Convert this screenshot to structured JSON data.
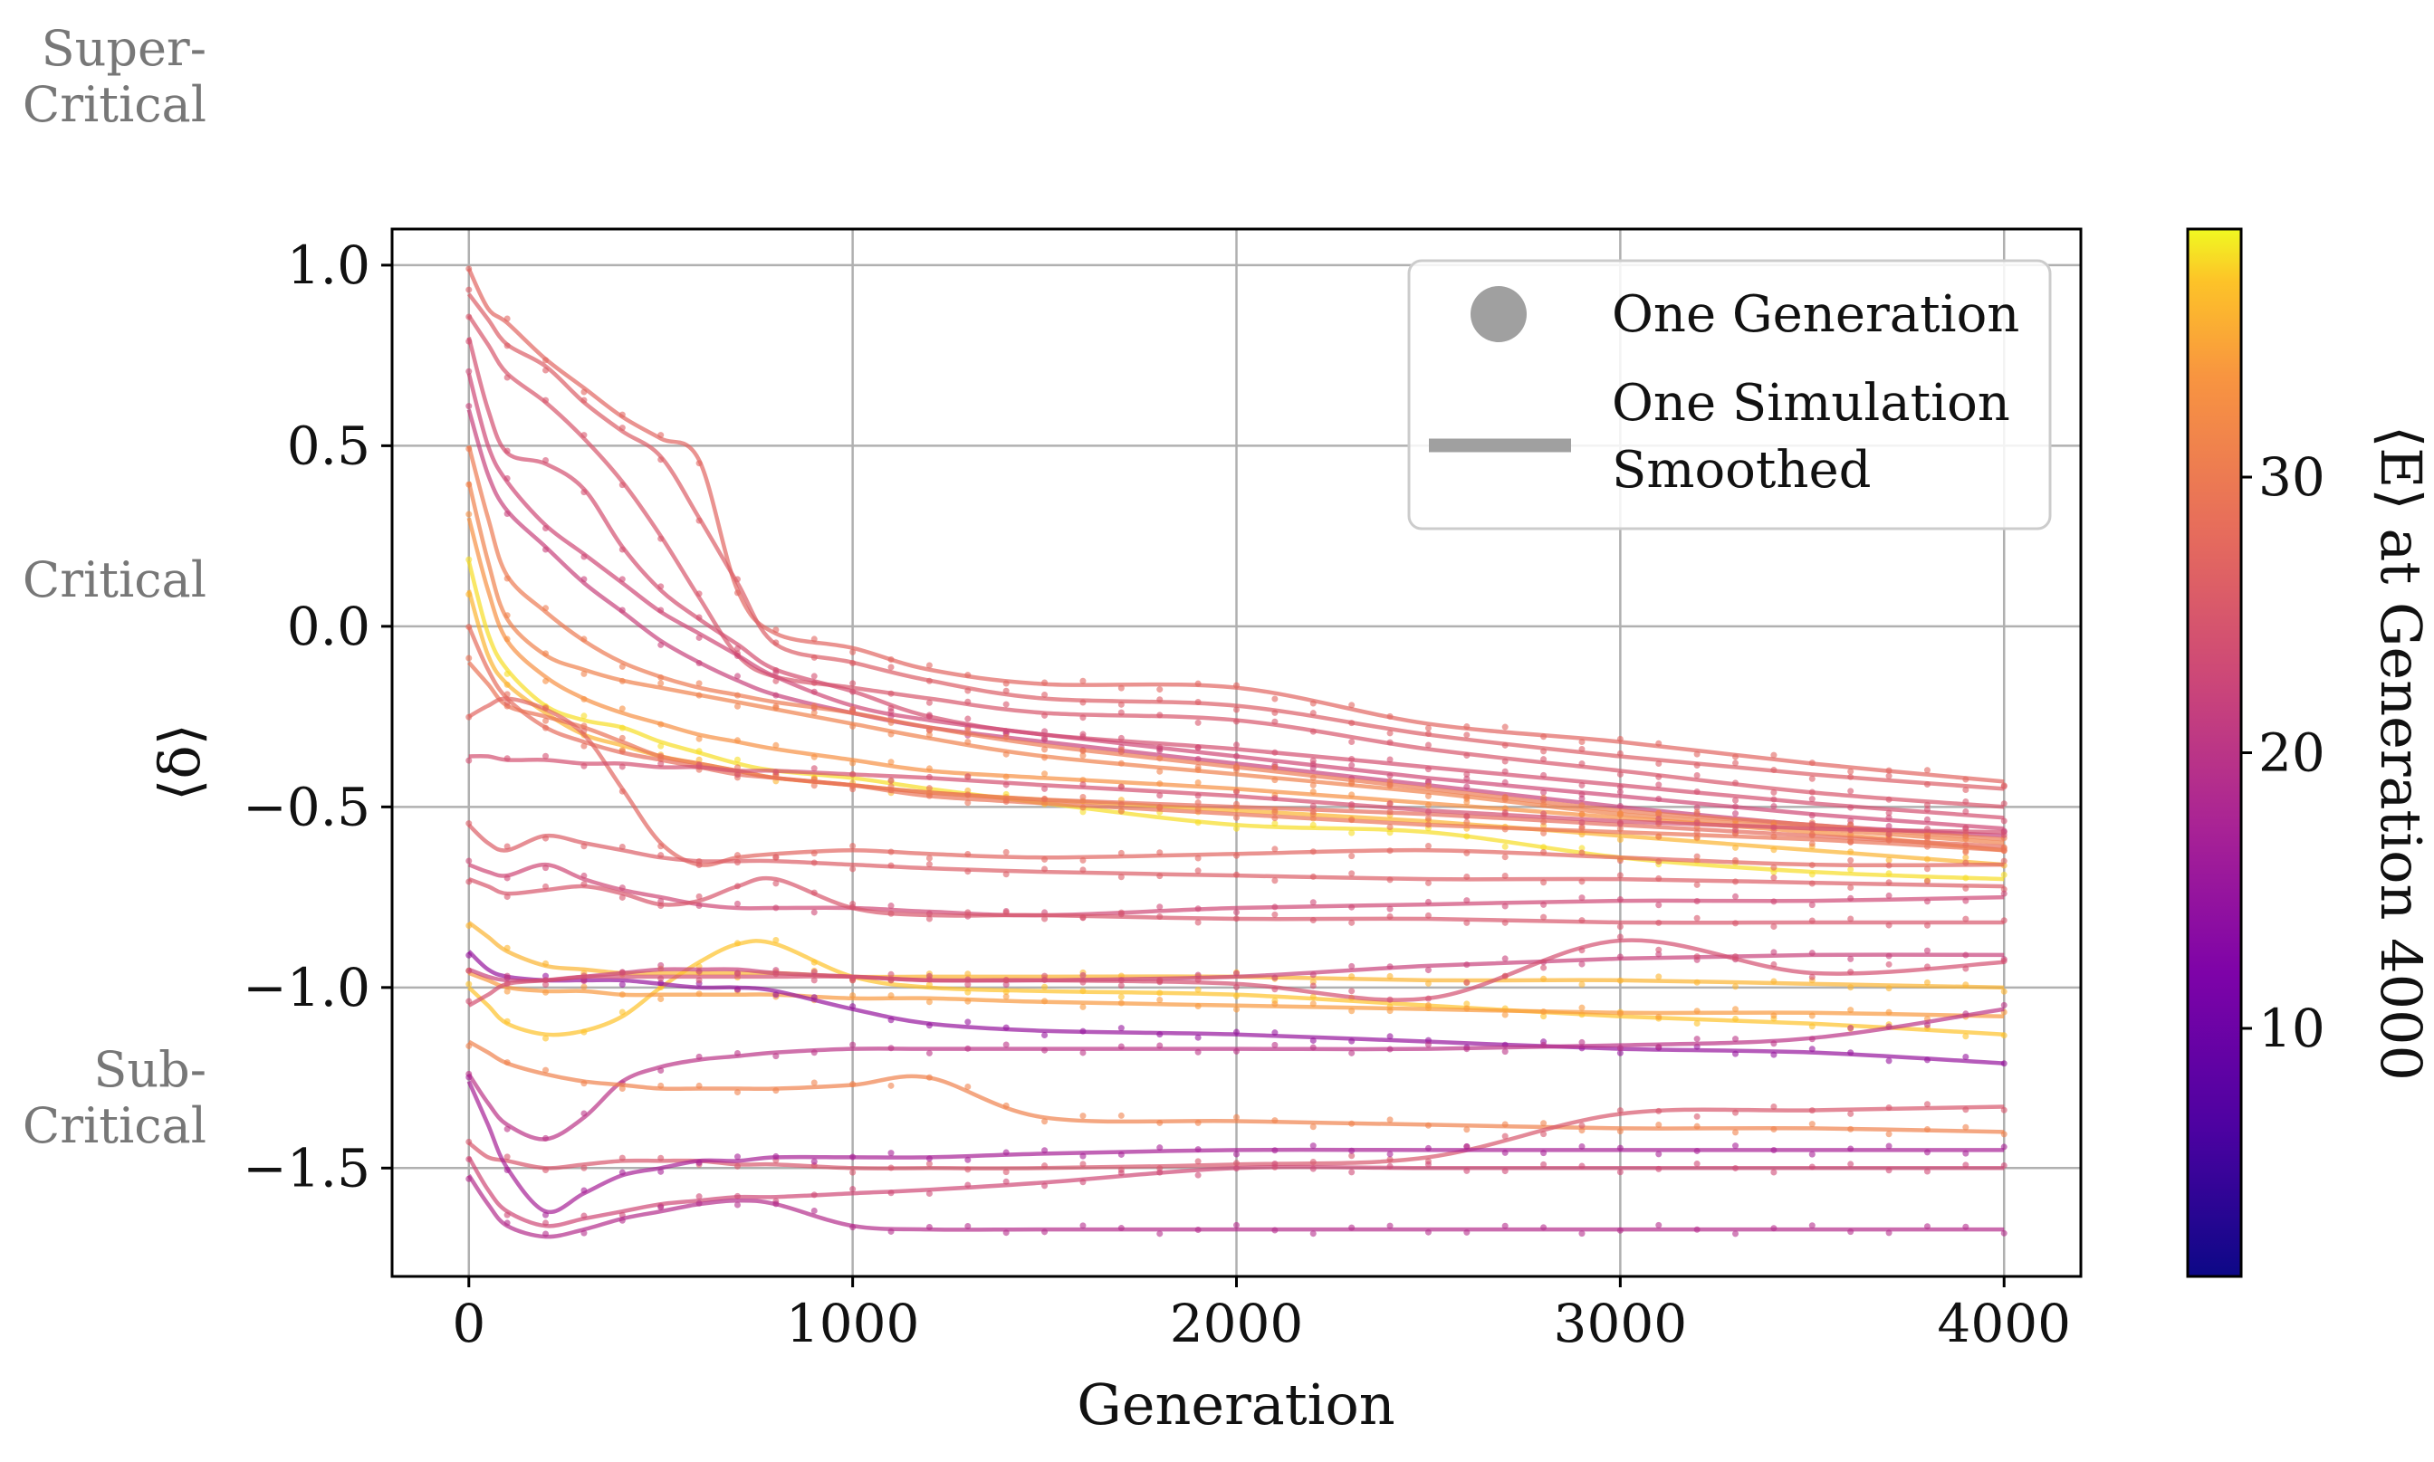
{
  "regime_labels": {
    "super": [
      "Super-",
      "Critical"
    ],
    "critical": "Critical",
    "sub": [
      "Sub-",
      "Critical"
    ]
  },
  "legend": {
    "points_label": "One Generation",
    "line_label_1": "One Simulation",
    "line_label_2": "Smoothed"
  },
  "colorbar": {
    "label": "⟨E⟩ at Generation 4000",
    "colormap": "plasma",
    "range": [
      1,
      39
    ],
    "ticks": [
      10,
      20,
      30
    ]
  },
  "chart_data": {
    "type": "line",
    "xlabel": "Generation",
    "ylabel": "⟨δ⟩",
    "xlim": [
      -200,
      4200
    ],
    "ylim": [
      -1.8,
      1.1
    ],
    "xticks": [
      0,
      1000,
      2000,
      3000,
      4000
    ],
    "xtick_labels": [
      "0",
      "1000",
      "2000",
      "3000",
      "4000"
    ],
    "yticks": [
      1.0,
      0.5,
      0.0,
      -0.5,
      -1.0,
      -1.5
    ],
    "ytick_labels": [
      "1.0",
      "0.5",
      "0.0",
      "−0.5",
      "−1.0",
      "−1.5"
    ],
    "grid": true,
    "legend_position": "top-right",
    "series_x": [
      0,
      50,
      100,
      200,
      300,
      400,
      500,
      600,
      700,
      800,
      1000,
      1200,
      1500,
      2000,
      2500,
      3000,
      3500,
      4000
    ],
    "series": [
      {
        "E": 27,
        "values": [
          0.99,
          0.88,
          0.84,
          0.74,
          0.66,
          0.58,
          0.52,
          0.46,
          0.1,
          -0.02,
          -0.06,
          -0.12,
          -0.16,
          -0.17,
          -0.27,
          -0.32,
          -0.38,
          -0.43
        ]
      },
      {
        "E": 26,
        "values": [
          0.92,
          0.85,
          0.78,
          0.72,
          0.62,
          0.54,
          0.47,
          0.3,
          0.12,
          -0.05,
          -0.1,
          -0.15,
          -0.2,
          -0.22,
          -0.3,
          -0.36,
          -0.41,
          -0.45
        ]
      },
      {
        "E": 25,
        "values": [
          0.86,
          0.78,
          0.7,
          0.62,
          0.52,
          0.4,
          0.25,
          0.08,
          -0.08,
          -0.14,
          -0.17,
          -0.2,
          -0.24,
          -0.26,
          -0.34,
          -0.4,
          -0.46,
          -0.5
        ]
      },
      {
        "E": 24,
        "values": [
          0.8,
          0.6,
          0.48,
          0.45,
          0.38,
          0.22,
          0.1,
          0.02,
          -0.05,
          -0.12,
          -0.18,
          -0.25,
          -0.3,
          -0.34,
          -0.39,
          -0.44,
          -0.49,
          -0.53
        ]
      },
      {
        "E": 23,
        "values": [
          0.7,
          0.5,
          0.4,
          0.28,
          0.2,
          0.12,
          0.04,
          -0.02,
          -0.08,
          -0.14,
          -0.22,
          -0.26,
          -0.3,
          -0.36,
          -0.42,
          -0.47,
          -0.52,
          -0.56
        ]
      },
      {
        "E": 22,
        "values": [
          0.6,
          0.42,
          0.32,
          0.22,
          0.12,
          0.04,
          -0.04,
          -0.1,
          -0.15,
          -0.19,
          -0.24,
          -0.28,
          -0.32,
          -0.38,
          -0.44,
          -0.5,
          -0.55,
          -0.58
        ]
      },
      {
        "E": 30,
        "values": [
          0.5,
          0.3,
          0.14,
          0.04,
          -0.04,
          -0.1,
          -0.14,
          -0.17,
          -0.19,
          -0.21,
          -0.24,
          -0.28,
          -0.33,
          -0.39,
          -0.45,
          -0.51,
          -0.55,
          -0.59
        ]
      },
      {
        "E": 31,
        "values": [
          0.4,
          0.18,
          0.02,
          -0.08,
          -0.12,
          -0.15,
          -0.17,
          -0.19,
          -0.21,
          -0.23,
          -0.27,
          -0.31,
          -0.36,
          -0.41,
          -0.46,
          -0.52,
          -0.56,
          -0.6
        ]
      },
      {
        "E": 33,
        "values": [
          0.3,
          0.1,
          -0.04,
          -0.14,
          -0.2,
          -0.24,
          -0.27,
          -0.3,
          -0.32,
          -0.34,
          -0.37,
          -0.4,
          -0.42,
          -0.45,
          -0.49,
          -0.53,
          -0.57,
          -0.62
        ]
      },
      {
        "E": 38,
        "values": [
          0.18,
          -0.02,
          -0.12,
          -0.22,
          -0.26,
          -0.28,
          -0.32,
          -0.35,
          -0.38,
          -0.4,
          -0.42,
          -0.45,
          -0.49,
          -0.55,
          -0.57,
          -0.64,
          -0.68,
          -0.7
        ]
      },
      {
        "E": 36,
        "values": [
          0.1,
          -0.08,
          -0.16,
          -0.24,
          -0.3,
          -0.33,
          -0.36,
          -0.38,
          -0.4,
          -0.42,
          -0.44,
          -0.46,
          -0.48,
          -0.51,
          -0.54,
          -0.58,
          -0.62,
          -0.66
        ]
      },
      {
        "E": 28,
        "values": [
          0.0,
          -0.12,
          -0.2,
          -0.28,
          -0.32,
          -0.35,
          -0.37,
          -0.39,
          -0.41,
          -0.42,
          -0.44,
          -0.46,
          -0.48,
          -0.5,
          -0.52,
          -0.55,
          -0.58,
          -0.61
        ]
      },
      {
        "E": 29,
        "values": [
          -0.1,
          -0.16,
          -0.22,
          -0.25,
          -0.28,
          -0.32,
          -0.36,
          -0.38,
          -0.4,
          -0.42,
          -0.44,
          -0.47,
          -0.49,
          -0.52,
          -0.55,
          -0.57,
          -0.59,
          -0.62
        ]
      },
      {
        "E": 27,
        "values": [
          -0.25,
          -0.22,
          -0.2,
          -0.23,
          -0.3,
          -0.45,
          -0.6,
          -0.66,
          -0.64,
          -0.63,
          -0.62,
          -0.63,
          -0.64,
          -0.63,
          -0.62,
          -0.64,
          -0.66,
          -0.66
        ]
      },
      {
        "E": 24,
        "values": [
          -0.36,
          -0.36,
          -0.37,
          -0.37,
          -0.38,
          -0.38,
          -0.39,
          -0.39,
          -0.4,
          -0.4,
          -0.41,
          -0.42,
          -0.44,
          -0.47,
          -0.51,
          -0.54,
          -0.56,
          -0.57
        ]
      },
      {
        "E": 26,
        "values": [
          -0.55,
          -0.6,
          -0.62,
          -0.58,
          -0.6,
          -0.62,
          -0.64,
          -0.65,
          -0.65,
          -0.65,
          -0.66,
          -0.67,
          -0.68,
          -0.69,
          -0.7,
          -0.7,
          -0.71,
          -0.72
        ]
      },
      {
        "E": 23,
        "values": [
          -0.66,
          -0.68,
          -0.69,
          -0.66,
          -0.7,
          -0.73,
          -0.75,
          -0.77,
          -0.78,
          -0.78,
          -0.78,
          -0.79,
          -0.8,
          -0.78,
          -0.77,
          -0.76,
          -0.76,
          -0.75
        ]
      },
      {
        "E": 25,
        "values": [
          -0.7,
          -0.72,
          -0.74,
          -0.73,
          -0.72,
          -0.74,
          -0.77,
          -0.76,
          -0.72,
          -0.7,
          -0.78,
          -0.8,
          -0.8,
          -0.81,
          -0.81,
          -0.82,
          -0.82,
          -0.82
        ]
      },
      {
        "E": 36,
        "values": [
          -0.82,
          -0.86,
          -0.9,
          -0.94,
          -0.95,
          -0.96,
          -0.96,
          -0.96,
          -0.96,
          -0.96,
          -0.97,
          -0.97,
          -0.97,
          -0.97,
          -0.98,
          -0.98,
          -0.99,
          -1.0
        ]
      },
      {
        "E": 37,
        "values": [
          -1.0,
          -1.05,
          -1.1,
          -1.13,
          -1.12,
          -1.08,
          -1.0,
          -0.93,
          -0.88,
          -0.88,
          -0.97,
          -1.0,
          -1.01,
          -1.02,
          -1.05,
          -1.08,
          -1.1,
          -1.13
        ]
      },
      {
        "E": 34,
        "values": [
          -0.96,
          -0.98,
          -1.0,
          -1.01,
          -1.01,
          -1.02,
          -1.02,
          -1.02,
          -1.02,
          -1.02,
          -1.03,
          -1.03,
          -1.04,
          -1.05,
          -1.06,
          -1.07,
          -1.07,
          -1.08
        ]
      },
      {
        "E": 15,
        "values": [
          -0.9,
          -0.95,
          -0.97,
          -0.98,
          -0.98,
          -0.98,
          -0.99,
          -1.0,
          -1.0,
          -1.01,
          -1.06,
          -1.1,
          -1.12,
          -1.13,
          -1.15,
          -1.17,
          -1.18,
          -1.21
        ]
      },
      {
        "E": 22,
        "values": [
          -0.95,
          -0.97,
          -0.98,
          -0.98,
          -0.97,
          -0.96,
          -0.95,
          -0.95,
          -0.95,
          -0.96,
          -0.97,
          -0.98,
          -0.98,
          -0.97,
          -0.94,
          -0.92,
          -0.91,
          -0.91
        ]
      },
      {
        "E": 24,
        "values": [
          -1.05,
          -1.02,
          -0.99,
          -0.98,
          -0.97,
          -0.97,
          -0.97,
          -0.97,
          -0.97,
          -0.97,
          -0.97,
          -0.98,
          -0.98,
          -0.99,
          -1.03,
          -0.87,
          -0.96,
          -0.93
        ]
      },
      {
        "E": 20,
        "values": [
          -1.24,
          -1.32,
          -1.38,
          -1.42,
          -1.36,
          -1.26,
          -1.22,
          -1.2,
          -1.19,
          -1.18,
          -1.17,
          -1.17,
          -1.17,
          -1.17,
          -1.17,
          -1.16,
          -1.14,
          -1.06
        ]
      },
      {
        "E": 31,
        "values": [
          -1.15,
          -1.18,
          -1.21,
          -1.24,
          -1.26,
          -1.27,
          -1.28,
          -1.28,
          -1.28,
          -1.28,
          -1.27,
          -1.25,
          -1.36,
          -1.37,
          -1.38,
          -1.39,
          -1.39,
          -1.4
        ]
      },
      {
        "E": 25,
        "values": [
          -1.43,
          -1.47,
          -1.48,
          -1.5,
          -1.49,
          -1.48,
          -1.48,
          -1.48,
          -1.49,
          -1.49,
          -1.5,
          -1.5,
          -1.5,
          -1.49,
          -1.47,
          -1.35,
          -1.34,
          -1.33
        ]
      },
      {
        "E": 17,
        "values": [
          -1.26,
          -1.38,
          -1.5,
          -1.62,
          -1.57,
          -1.52,
          -1.5,
          -1.48,
          -1.48,
          -1.47,
          -1.47,
          -1.47,
          -1.46,
          -1.45,
          -1.45,
          -1.45,
          -1.45,
          -1.45
        ]
      },
      {
        "E": 23,
        "values": [
          -1.47,
          -1.56,
          -1.62,
          -1.66,
          -1.64,
          -1.62,
          -1.6,
          -1.59,
          -1.58,
          -1.58,
          -1.57,
          -1.56,
          -1.54,
          -1.5,
          -1.5,
          -1.5,
          -1.5,
          -1.5
        ]
      },
      {
        "E": 19,
        "values": [
          -1.52,
          -1.6,
          -1.66,
          -1.69,
          -1.67,
          -1.64,
          -1.62,
          -1.6,
          -1.59,
          -1.6,
          -1.66,
          -1.67,
          -1.67,
          -1.67,
          -1.67,
          -1.67,
          -1.67,
          -1.67
        ]
      }
    ]
  }
}
